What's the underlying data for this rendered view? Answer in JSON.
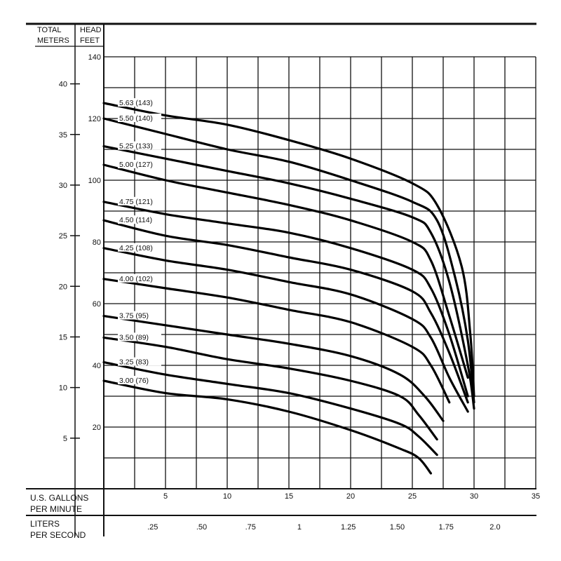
{
  "chart_data": {
    "type": "line",
    "header": {
      "meters_label_line1": "TOTAL",
      "meters_label_line2": "METERS",
      "feet_label_line1": "HEAD",
      "feet_label_line2": "FEET"
    },
    "x_axes": {
      "gpm": {
        "label_line1": "U.S. GALLONS",
        "label_line2": "PER MINUTE",
        "ticks": [
          5,
          10,
          15,
          20,
          25,
          30,
          35
        ],
        "range": [
          0,
          35
        ]
      },
      "lps": {
        "label_line1": "LITERS",
        "label_line2": "PER SECOND",
        "ticks": [
          ".25",
          ".50",
          ".75",
          "1",
          "1.25",
          "1.50",
          "1.75",
          "2.0"
        ],
        "tick_values": [
          0.25,
          0.5,
          0.75,
          1.0,
          1.25,
          1.5,
          1.75,
          2.0
        ]
      }
    },
    "y_axes": {
      "feet": {
        "ticks": [
          20,
          40,
          60,
          80,
          100,
          120,
          140
        ],
        "range": [
          0,
          140
        ]
      },
      "meters": {
        "ticks": [
          5,
          10,
          15,
          20,
          25,
          30,
          35,
          40
        ]
      }
    },
    "grid": true,
    "series": [
      {
        "name": "5.63 (143)",
        "points": [
          [
            0,
            125
          ],
          [
            5,
            121
          ],
          [
            10,
            118
          ],
          [
            15,
            113
          ],
          [
            20,
            107
          ],
          [
            25,
            99
          ],
          [
            27,
            92
          ],
          [
            29,
            72
          ],
          [
            29.7,
            50
          ],
          [
            30,
            30
          ]
        ]
      },
      {
        "name": "5.50 (140)",
        "points": [
          [
            0,
            120
          ],
          [
            5,
            115
          ],
          [
            10,
            110
          ],
          [
            15,
            106
          ],
          [
            20,
            100
          ],
          [
            25,
            93
          ],
          [
            27,
            87
          ],
          [
            28.5,
            68
          ],
          [
            29.5,
            48
          ],
          [
            30,
            28
          ]
        ]
      },
      {
        "name": "5.25 (133)",
        "points": [
          [
            0,
            111
          ],
          [
            5,
            107
          ],
          [
            10,
            103
          ],
          [
            15,
            99
          ],
          [
            20,
            94
          ],
          [
            25,
            88
          ],
          [
            26.5,
            83
          ],
          [
            28,
            67
          ],
          [
            29.5,
            40
          ],
          [
            30,
            26
          ]
        ]
      },
      {
        "name": "5.00 (127)",
        "points": [
          [
            0,
            105
          ],
          [
            5,
            100
          ],
          [
            10,
            96
          ],
          [
            15,
            92
          ],
          [
            20,
            87
          ],
          [
            25,
            80
          ],
          [
            26.5,
            74
          ],
          [
            28,
            56
          ],
          [
            29.5,
            36
          ]
        ]
      },
      {
        "name": "4.75 (121)",
        "points": [
          [
            0,
            93
          ],
          [
            5,
            89
          ],
          [
            10,
            86
          ],
          [
            15,
            83
          ],
          [
            20,
            78
          ],
          [
            25,
            71
          ],
          [
            26.5,
            65
          ],
          [
            28,
            50
          ],
          [
            29.5,
            30
          ]
        ]
      },
      {
        "name": "4.50 (114)",
        "points": [
          [
            0,
            87
          ],
          [
            5,
            82
          ],
          [
            10,
            79
          ],
          [
            15,
            75
          ],
          [
            20,
            71
          ],
          [
            25,
            64
          ],
          [
            26.5,
            57
          ],
          [
            28,
            44
          ],
          [
            29.5,
            28
          ]
        ]
      },
      {
        "name": "4.25 (108)",
        "points": [
          [
            0,
            78
          ],
          [
            5,
            74
          ],
          [
            10,
            71
          ],
          [
            15,
            67
          ],
          [
            20,
            63
          ],
          [
            25,
            55
          ],
          [
            26.5,
            49
          ],
          [
            28,
            36
          ],
          [
            29.5,
            25
          ]
        ]
      },
      {
        "name": "4.00 (102)",
        "points": [
          [
            0,
            68
          ],
          [
            5,
            65
          ],
          [
            10,
            62
          ],
          [
            15,
            58
          ],
          [
            20,
            54
          ],
          [
            25,
            46
          ],
          [
            26.5,
            40
          ],
          [
            28,
            28
          ]
        ]
      },
      {
        "name": "3.75 (95)",
        "points": [
          [
            0,
            56
          ],
          [
            5,
            53
          ],
          [
            10,
            50
          ],
          [
            15,
            47
          ],
          [
            20,
            43
          ],
          [
            24,
            37
          ],
          [
            26,
            30
          ],
          [
            27.5,
            22
          ]
        ]
      },
      {
        "name": "3.50 (89)",
        "points": [
          [
            0,
            49
          ],
          [
            5,
            46
          ],
          [
            10,
            42
          ],
          [
            15,
            39
          ],
          [
            20,
            35
          ],
          [
            24,
            30
          ],
          [
            25.5,
            24
          ],
          [
            27,
            16
          ]
        ]
      },
      {
        "name": "3.25 (83)",
        "points": [
          [
            0,
            41
          ],
          [
            5,
            37
          ],
          [
            10,
            34
          ],
          [
            15,
            31
          ],
          [
            20,
            26
          ],
          [
            24,
            21
          ],
          [
            25.5,
            17
          ],
          [
            27,
            11
          ]
        ]
      },
      {
        "name": "3.00 (76)",
        "points": [
          [
            0,
            35
          ],
          [
            5,
            31
          ],
          [
            10,
            29
          ],
          [
            15,
            25
          ],
          [
            20,
            19
          ],
          [
            24,
            13
          ],
          [
            25.5,
            10
          ],
          [
            26.5,
            5
          ]
        ]
      }
    ]
  }
}
